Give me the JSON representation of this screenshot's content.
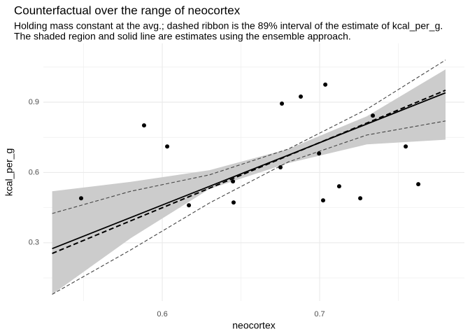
{
  "chart_data": {
    "type": "line",
    "title": "Counterfactual over the range of neocortex",
    "subtitle": [
      "Holding mass constant at the avg.; dashed ribbon is the 89% interval of the estimate of kcal_per_g.",
      "The shaded region and solid line are estimates using the ensemble approach."
    ],
    "x_label": "neocortex",
    "y_label": "kcal_per_g",
    "xlim": [
      0.5244,
      0.792
    ],
    "ylim": [
      0.0515,
      1.151
    ],
    "xticks": [
      0.6,
      0.7
    ],
    "yticks": [
      0.3,
      0.6,
      0.9
    ],
    "minor_xticks": [
      0.55,
      0.65,
      0.75
    ],
    "minor_yticks": [
      0.15,
      0.45,
      0.75,
      1.05
    ],
    "grid": true,
    "layers": [
      {
        "kind": "ribbon",
        "color": "#cccccc",
        "x": [
          0.53,
          0.58,
          0.63,
          0.68,
          0.73,
          0.78
        ],
        "upper": [
          0.52,
          0.56,
          0.61,
          0.7,
          0.84,
          1.04
        ],
        "lower": [
          0.08,
          0.32,
          0.53,
          0.64,
          0.72,
          0.74
        ]
      },
      {
        "kind": "band-lines",
        "color": "#444444",
        "x": [
          0.53,
          0.58,
          0.63,
          0.68,
          0.73,
          0.78
        ],
        "upper": [
          0.425,
          0.52,
          0.59,
          0.7,
          0.87,
          1.08
        ],
        "lower": [
          0.08,
          0.27,
          0.47,
          0.645,
          0.76,
          0.82
        ]
      },
      {
        "kind": "dashed-line",
        "color": "#000000",
        "x": [
          0.53,
          0.58,
          0.63,
          0.68,
          0.73,
          0.78
        ],
        "values": [
          0.2545,
          0.394,
          0.533,
          0.672,
          0.811,
          0.951
        ]
      },
      {
        "kind": "solid-line",
        "color": "#000000",
        "x": [
          0.53,
          0.58,
          0.63,
          0.68,
          0.73,
          0.78
        ],
        "values": [
          0.275,
          0.408,
          0.541,
          0.674,
          0.807,
          0.94
        ]
      },
      {
        "kind": "points",
        "color": "#000000",
        "x": [
          0.5484,
          0.5884,
          0.6031,
          0.6169,
          0.6449,
          0.6453,
          0.676,
          0.6751,
          0.688,
          0.6996,
          0.7036,
          0.7022,
          0.7124,
          0.7258,
          0.7338,
          0.7547,
          0.7627
        ],
        "values": [
          0.49,
          0.801,
          0.711,
          0.46,
          0.562,
          0.472,
          0.894,
          0.622,
          0.924,
          0.681,
          0.975,
          0.481,
          0.541,
          0.49,
          0.843,
          0.711,
          0.55
        ]
      }
    ]
  }
}
